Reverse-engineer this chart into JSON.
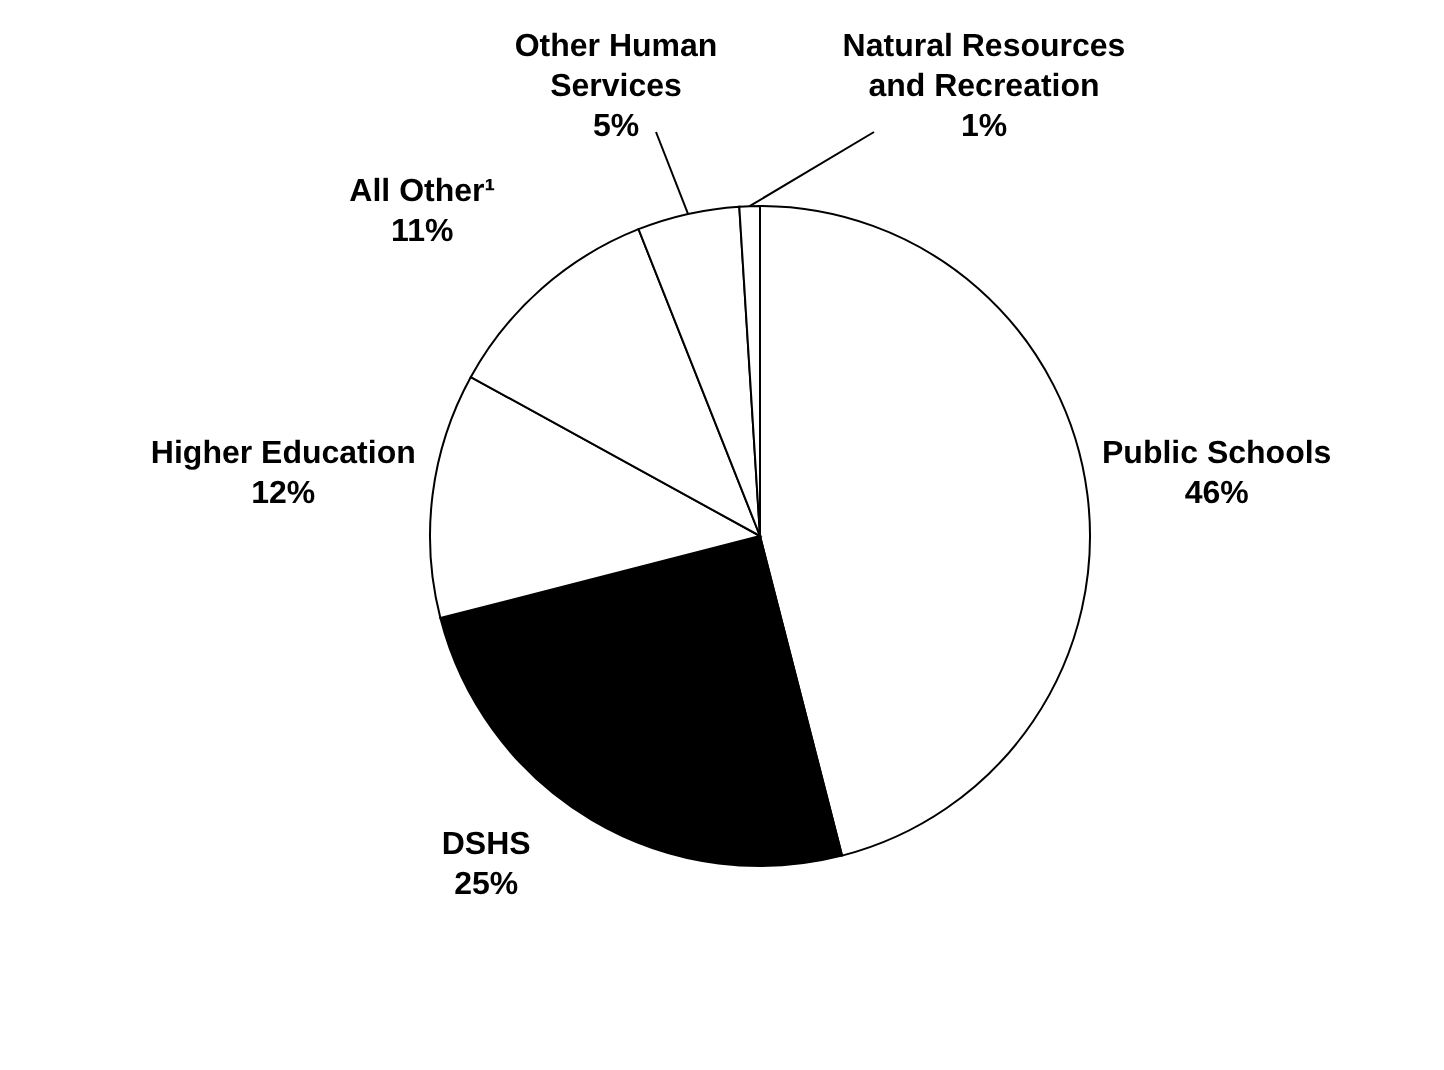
{
  "chart_data": {
    "type": "pie",
    "categories": [
      "Public Schools",
      "DSHS",
      "Higher Education",
      "All Other¹",
      "Other Human Services",
      "Natural Resources and Recreation"
    ],
    "values": [
      46,
      25,
      12,
      11,
      5,
      1
    ],
    "colors": [
      "#ffffff",
      "#000000",
      "#ffffff",
      "#ffffff",
      "#ffffff",
      "#ffffff"
    ],
    "value_labels": [
      "46%",
      "25%",
      "12%",
      "11%",
      "5%",
      "1%"
    ]
  }
}
